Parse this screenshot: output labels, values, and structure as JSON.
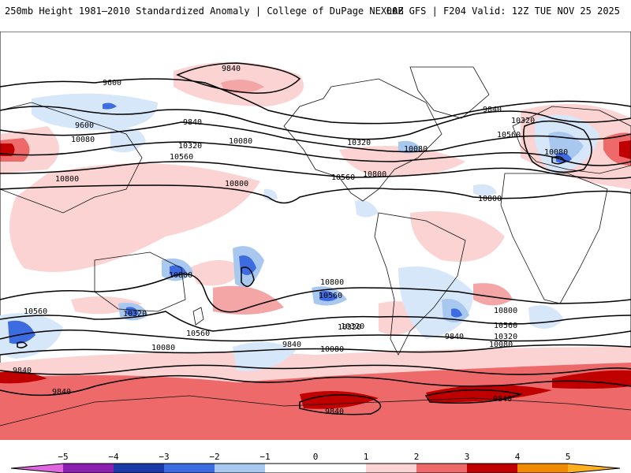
{
  "header": {
    "title": "250mb Height 1981–2010 Standardized Anomaly | College of DuPage NEXLAB",
    "run_info": "00Z GFS | F204 Valid: 12Z TUE NOV 25 2025"
  },
  "colors": {
    "neg5": "#e066e0",
    "neg4": "#8a1fb0",
    "neg3": "#1a3aa8",
    "neg2": "#3d6be0",
    "neg1": "#a9c8f0",
    "neg0": "#d7e7fa",
    "pos0": "#fbd3d3",
    "pos1": "#f4a6a6",
    "pos2": "#ee6a6a",
    "pos3": "#c00000",
    "pos4": "#f08a00",
    "pos5": "#ffb020",
    "coast": "#111111",
    "contour": "#000000"
  },
  "contour_labels": [
    {
      "id": "c1",
      "text": "9840"
    },
    {
      "id": "c2",
      "text": "9600"
    },
    {
      "id": "c3",
      "text": "9600"
    },
    {
      "id": "c4",
      "text": "9840"
    },
    {
      "id": "c5",
      "text": "10080"
    },
    {
      "id": "c6",
      "text": "10080"
    },
    {
      "id": "c7",
      "text": "10320"
    },
    {
      "id": "c8",
      "text": "10560"
    },
    {
      "id": "c9",
      "text": "10800"
    },
    {
      "id": "c10",
      "text": "10800"
    },
    {
      "id": "c11",
      "text": "10320"
    },
    {
      "id": "c12",
      "text": "10080"
    },
    {
      "id": "c13",
      "text": "10560"
    },
    {
      "id": "c14",
      "text": "10800"
    },
    {
      "id": "c15",
      "text": "9840"
    },
    {
      "id": "c16",
      "text": "10320"
    },
    {
      "id": "c17",
      "text": "10560"
    },
    {
      "id": "c18",
      "text": "10080"
    },
    {
      "id": "c19",
      "text": "10800"
    },
    {
      "id": "c20",
      "text": "10800"
    },
    {
      "id": "c21",
      "text": "10560"
    },
    {
      "id": "c22",
      "text": "10320"
    },
    {
      "id": "c23",
      "text": "10560"
    },
    {
      "id": "c24",
      "text": "10320"
    },
    {
      "id": "c25",
      "text": "10800"
    },
    {
      "id": "c26",
      "text": "10560"
    },
    {
      "id": "c27",
      "text": "10320"
    },
    {
      "id": "c28",
      "text": "10080"
    },
    {
      "id": "c29",
      "text": "9840"
    },
    {
      "id": "c30",
      "text": "10080"
    },
    {
      "id": "c31",
      "text": "9840"
    },
    {
      "id": "c32",
      "text": "9840"
    },
    {
      "id": "c33",
      "text": "9840"
    },
    {
      "id": "c34",
      "text": "9840"
    },
    {
      "id": "c35",
      "text": "10560"
    },
    {
      "id": "c36",
      "text": "10800"
    },
    {
      "id": "c37",
      "text": "10320"
    },
    {
      "id": "c38",
      "text": "10080"
    },
    {
      "id": "c39",
      "text": "9840"
    }
  ],
  "colorbar": {
    "ticks": [
      "−5",
      "−4",
      "−3",
      "−2",
      "−1",
      "0",
      "1",
      "2",
      "3",
      "4",
      "5"
    ]
  }
}
